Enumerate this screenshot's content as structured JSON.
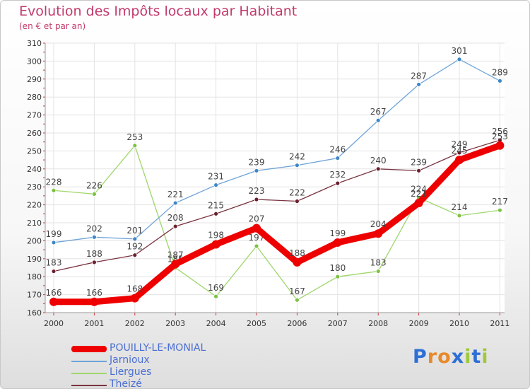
{
  "chart_data": {
    "type": "line",
    "title": "Evolution des Impôts locaux par Habitant",
    "subtitle": "(en € et par an)",
    "categories": [
      "2000",
      "2001",
      "2002",
      "2003",
      "2004",
      "2005",
      "2006",
      "2007",
      "2008",
      "2009",
      "2010",
      "2011"
    ],
    "ylim": [
      160,
      310
    ],
    "yticks": [
      160,
      170,
      180,
      190,
      200,
      210,
      220,
      230,
      240,
      250,
      260,
      270,
      280,
      290,
      300,
      310
    ],
    "series": [
      {
        "name": "Liergues",
        "color": "#9fd66b",
        "point_color": "#7cc242",
        "values": [
          228,
          226,
          253,
          185,
          169,
          197,
          167,
          180,
          183,
          224,
          214,
          217
        ]
      },
      {
        "name": "Jarnioux",
        "color": "#6fa4d9",
        "point_color": "#3f86c6",
        "values": [
          199,
          202,
          201,
          221,
          231,
          239,
          242,
          246,
          267,
          287,
          301,
          289
        ]
      },
      {
        "name": "Theizé",
        "color": "#7a3340",
        "point_color": "#6b1f2e",
        "values": [
          183,
          188,
          192,
          208,
          215,
          223,
          222,
          232,
          240,
          239,
          249,
          256
        ]
      },
      {
        "name": "POUILLY-LE-MONIAL",
        "color": "#ee0000",
        "point_color": "#ee0000",
        "values": [
          166,
          166,
          168,
          187,
          198,
          207,
          188,
          199,
          204,
          221,
          245,
          253
        ]
      }
    ],
    "legend_order": [
      "POUILLY-LE-MONIAL",
      "Jarnioux",
      "Liergues",
      "Theizé"
    ]
  },
  "brand": {
    "text": "Proxiti",
    "letter_colors": [
      "#2e6fd6",
      "#e8892b",
      "#e8892b",
      "#2e6fd6",
      "#9fc93c",
      "#2e6fd6",
      "#9fc93c"
    ]
  }
}
